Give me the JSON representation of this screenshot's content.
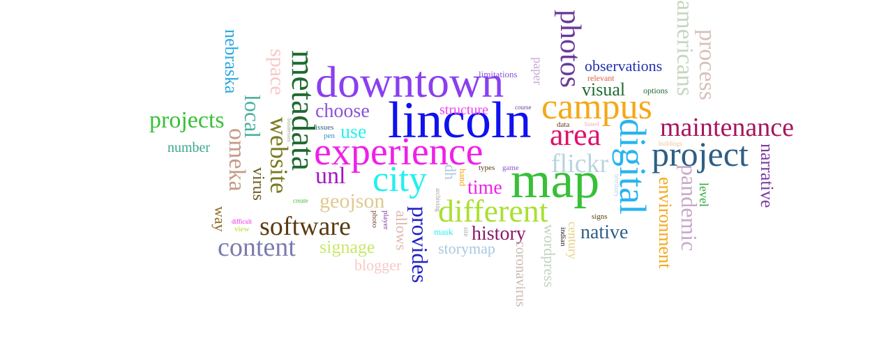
{
  "words": [
    {
      "id": "downtown",
      "text": "downtown",
      "color": "#8a3ff0"
    },
    {
      "id": "lincoln",
      "text": "lincoln",
      "color": "#1010f0"
    },
    {
      "id": "experience",
      "text": "experience",
      "color": "#f020e8"
    },
    {
      "id": "map",
      "text": "map",
      "color": "#38c038"
    },
    {
      "id": "campus",
      "text": "campus",
      "color": "#f4a818"
    },
    {
      "id": "digital",
      "text": "digital",
      "color": "#28b4f0"
    },
    {
      "id": "project",
      "text": "project",
      "color": "#2e5e86"
    },
    {
      "id": "maintenance",
      "text": "maintenance",
      "color": "#a8145e"
    },
    {
      "id": "metadata",
      "text": "metadata",
      "color": "#1e6a2e"
    },
    {
      "id": "city",
      "text": "city",
      "color": "#20f0f0"
    },
    {
      "id": "different",
      "text": "different",
      "color": "#a8e030"
    },
    {
      "id": "area",
      "text": "area",
      "color": "#e0106a"
    },
    {
      "id": "photos",
      "text": "photos",
      "color": "#6a3a9a"
    },
    {
      "id": "americans",
      "text": "americans",
      "color": "#c6d6c0"
    },
    {
      "id": "process",
      "text": "process",
      "color": "#d8c0b8"
    },
    {
      "id": "software",
      "text": "software",
      "color": "#5a3a10"
    },
    {
      "id": "content",
      "text": "content",
      "color": "#7a7ab0"
    },
    {
      "id": "omeka",
      "text": "omeka",
      "color": "#c69a86"
    },
    {
      "id": "website",
      "text": "website",
      "color": "#7a7a20"
    },
    {
      "id": "local",
      "text": "local",
      "color": "#4ab0a0"
    },
    {
      "id": "space",
      "text": "space",
      "color": "#f8c8c8"
    },
    {
      "id": "nebraska",
      "text": "nebraska",
      "color": "#2aa8e0"
    },
    {
      "id": "projects",
      "text": "projects",
      "color": "#38c038"
    },
    {
      "id": "number",
      "text": "number",
      "color": "#3aa890"
    },
    {
      "id": "virus",
      "text": "virus",
      "color": "#6a5a20"
    },
    {
      "id": "way",
      "text": "way",
      "color": "#8a6a20"
    },
    {
      "id": "choose",
      "text": "choose",
      "color": "#8a52d8"
    },
    {
      "id": "use",
      "text": "use",
      "color": "#28f0f0"
    },
    {
      "id": "unl",
      "text": "unl",
      "color": "#a018c0"
    },
    {
      "id": "geojson",
      "text": "geojson",
      "color": "#e0c890"
    },
    {
      "id": "signage",
      "text": "signage",
      "color": "#c8e868"
    },
    {
      "id": "blogger",
      "text": "blogger",
      "color": "#f8c8c8"
    },
    {
      "id": "provides",
      "text": "provides",
      "color": "#2020c8"
    },
    {
      "id": "allows",
      "text": "allows",
      "color": "#e0b8b0"
    },
    {
      "id": "storymap",
      "text": "storymap",
      "color": "#a8c8e0"
    },
    {
      "id": "history",
      "text": "history",
      "color": "#8a186a"
    },
    {
      "id": "time",
      "text": "time",
      "color": "#f020e8"
    },
    {
      "id": "structure",
      "text": "structure",
      "color": "#f040f0"
    },
    {
      "id": "flickr",
      "text": "flickr",
      "color": "#b8d4e0"
    },
    {
      "id": "visual",
      "text": "visual",
      "color": "#1e6a2e"
    },
    {
      "id": "observations",
      "text": "observations",
      "color": "#2030b0"
    },
    {
      "id": "native",
      "text": "native",
      "color": "#2e5e86"
    },
    {
      "id": "environment",
      "text": "environment",
      "color": "#f4a818"
    },
    {
      "id": "pandemic",
      "text": "pandemic",
      "color": "#c8a8c8"
    },
    {
      "id": "narrative",
      "text": "narrative",
      "color": "#7a3aa0"
    },
    {
      "id": "level",
      "text": "level",
      "color": "#2aa838"
    },
    {
      "id": "wordpress",
      "text": "wordpress",
      "color": "#c0d4c0"
    },
    {
      "id": "coronavirus",
      "text": "coronavirus",
      "color": "#c8b8b0"
    },
    {
      "id": "century",
      "text": "century",
      "color": "#e8d080"
    },
    {
      "id": "paper",
      "text": "paper",
      "color": "#c8a8d8"
    },
    {
      "id": "limitations",
      "text": "limitations",
      "color": "#8a52d8"
    },
    {
      "id": "relevant",
      "text": "relevant",
      "color": "#e06040"
    },
    {
      "id": "options",
      "text": "options",
      "color": "#1e6a2e"
    },
    {
      "id": "buildings",
      "text": "buildings",
      "color": "#e8c890"
    },
    {
      "id": "based",
      "text": "based",
      "color": "#e8b0c8"
    },
    {
      "id": "data",
      "text": "data",
      "color": "#5a3a10"
    },
    {
      "id": "course",
      "text": "course",
      "color": "#6a3a9a"
    },
    {
      "id": "issues",
      "text": "issues",
      "color": "#2e5e86"
    },
    {
      "id": "pen",
      "text": "pen",
      "color": "#3090c0"
    },
    {
      "id": "businesses",
      "text": "businesses",
      "color": "#a0a890"
    },
    {
      "id": "create",
      "text": "create",
      "color": "#38c038"
    },
    {
      "id": "difficult",
      "text": "difficult",
      "color": "#f020e8"
    },
    {
      "id": "view",
      "text": "view",
      "color": "#a8e030"
    },
    {
      "id": "photo",
      "text": "photo",
      "color": "#7a4a30"
    },
    {
      "id": "player",
      "text": "player",
      "color": "#7a3aa0"
    },
    {
      "id": "mask",
      "text": "mask",
      "color": "#28f0f0"
    },
    {
      "id": "site",
      "text": "site",
      "color": "#a8a8a8"
    },
    {
      "id": "archiving",
      "text": "archiving",
      "color": "#9a9a9a"
    },
    {
      "id": "dh",
      "text": "dh",
      "color": "#a8c8e0"
    },
    {
      "id": "hand",
      "text": "hand",
      "color": "#f4a818"
    },
    {
      "id": "types",
      "text": "types",
      "color": "#5a3a10"
    },
    {
      "id": "game",
      "text": "game",
      "color": "#8a52d8"
    },
    {
      "id": "signs",
      "text": "signs",
      "color": "#5a3a10"
    },
    {
      "id": "indian",
      "text": "indian",
      "color": "#2a1a1a"
    },
    {
      "id": "territory",
      "text": "territory",
      "color": "#b8d4e0"
    }
  ]
}
